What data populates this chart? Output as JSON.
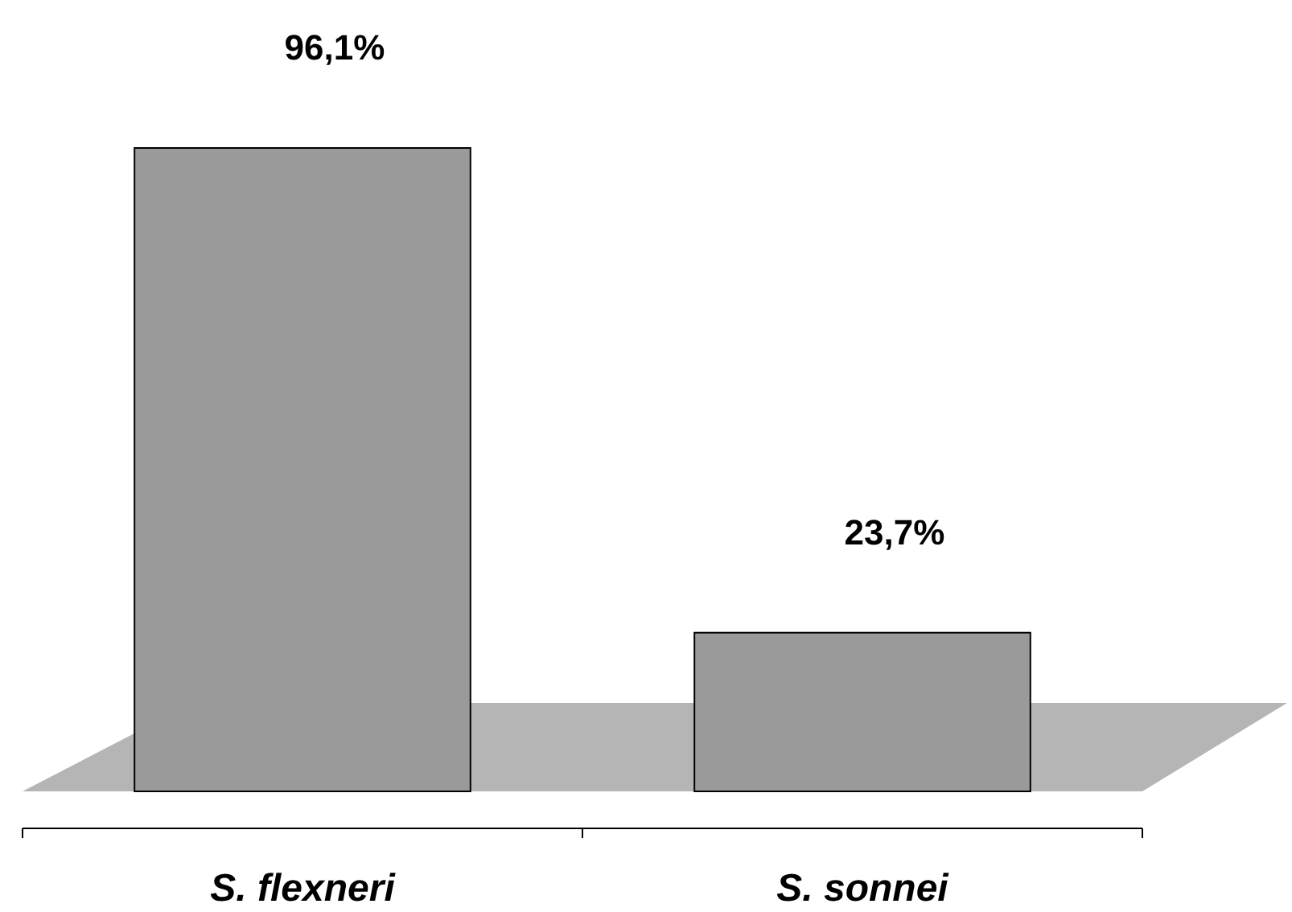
{
  "chart_data": {
    "type": "bar",
    "categories": [
      "S. flexneri",
      "S. sonnei"
    ],
    "values": [
      96.1,
      23.7
    ],
    "value_labels": [
      "96,1%",
      "23,7%"
    ],
    "color": "#9a9a9a"
  }
}
